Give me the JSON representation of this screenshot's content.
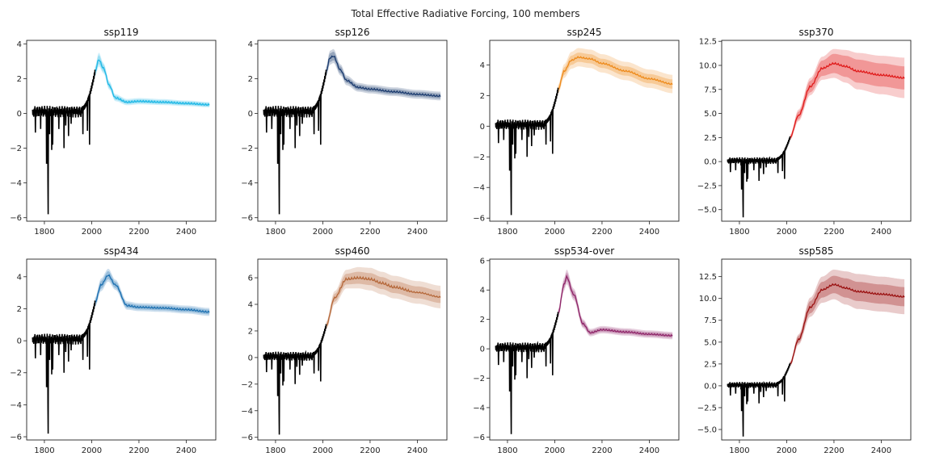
{
  "figure": {
    "suptitle": "Total Effective Radiative Forcing, 100 members"
  },
  "chart_data": [
    {
      "type": "line",
      "title": "ssp119",
      "color": "#1fb8e6",
      "xlim": [
        1725,
        2525
      ],
      "ylim": [
        -6.2,
        4.2
      ],
      "xticks": [
        1800,
        2000,
        2200,
        2400
      ],
      "yticks": [
        -6,
        -4,
        -2,
        0,
        2,
        4
      ],
      "ytick_labels": [
        "−6",
        "−4",
        "−2",
        "0",
        "2",
        "4"
      ],
      "historical": {
        "baseline": 0.1,
        "end_year": 2014,
        "end_value": 2.4
      },
      "projection": {
        "x": [
          2014,
          2030,
          2050,
          2075,
          2100,
          2150,
          2200,
          2300,
          2400,
          2500
        ],
        "median": [
          2.4,
          3.1,
          2.6,
          1.6,
          0.9,
          0.65,
          0.7,
          0.65,
          0.58,
          0.5
        ],
        "band_inner": [
          0.2,
          0.25,
          0.2,
          0.15,
          0.12,
          0.1,
          0.1,
          0.1,
          0.1,
          0.1
        ],
        "band_outer": [
          0.3,
          0.4,
          0.3,
          0.25,
          0.2,
          0.18,
          0.18,
          0.17,
          0.16,
          0.15
        ]
      }
    },
    {
      "type": "line",
      "title": "ssp126",
      "color": "#1a3a6e",
      "xlim": [
        1725,
        2525
      ],
      "ylim": [
        -6.2,
        4.2
      ],
      "xticks": [
        1800,
        2000,
        2200,
        2400
      ],
      "yticks": [
        -6,
        -4,
        -2,
        0,
        2,
        4
      ],
      "ytick_labels": [
        "−6",
        "−4",
        "−2",
        "0",
        "2",
        "4"
      ],
      "historical": {
        "baseline": 0.1,
        "end_year": 2014,
        "end_value": 2.4
      },
      "projection": {
        "x": [
          2014,
          2030,
          2045,
          2075,
          2100,
          2150,
          2200,
          2300,
          2400,
          2500
        ],
        "median": [
          2.4,
          3.2,
          3.3,
          2.5,
          1.9,
          1.5,
          1.4,
          1.25,
          1.1,
          1.0
        ],
        "band_inner": [
          0.2,
          0.25,
          0.25,
          0.2,
          0.15,
          0.15,
          0.15,
          0.15,
          0.15,
          0.15
        ],
        "band_outer": [
          0.3,
          0.4,
          0.4,
          0.32,
          0.28,
          0.25,
          0.25,
          0.25,
          0.25,
          0.25
        ]
      }
    },
    {
      "type": "line",
      "title": "ssp245",
      "color": "#ee8a1a",
      "xlim": [
        1725,
        2525
      ],
      "ylim": [
        -6.2,
        5.6
      ],
      "xticks": [
        1800,
        2000,
        2200,
        2400
      ],
      "yticks": [
        -6,
        -4,
        -2,
        0,
        2,
        4
      ],
      "ytick_labels": [
        "−6",
        "−4",
        "−2",
        "0",
        "2",
        "4"
      ],
      "historical": {
        "baseline": 0.1,
        "end_year": 2014,
        "end_value": 2.4
      },
      "projection": {
        "x": [
          2014,
          2040,
          2070,
          2100,
          2150,
          2200,
          2300,
          2400,
          2500
        ],
        "median": [
          2.4,
          3.6,
          4.3,
          4.5,
          4.4,
          4.1,
          3.6,
          3.1,
          2.75
        ],
        "band_inner": [
          0.2,
          0.25,
          0.3,
          0.3,
          0.3,
          0.3,
          0.3,
          0.3,
          0.3
        ],
        "band_outer": [
          0.3,
          0.45,
          0.55,
          0.6,
          0.6,
          0.6,
          0.6,
          0.6,
          0.6
        ]
      }
    },
    {
      "type": "line",
      "title": "ssp370",
      "color": "#e01a1a",
      "xlim": [
        1725,
        2525
      ],
      "ylim": [
        -6.2,
        12.6
      ],
      "xticks": [
        1800,
        2000,
        2200,
        2400
      ],
      "yticks": [
        -5,
        -2.5,
        0,
        2.5,
        5,
        7.5,
        10,
        12.5
      ],
      "ytick_labels": [
        "−5.0",
        "−2.5",
        "0.0",
        "2.5",
        "5.0",
        "7.5",
        "10.0",
        "12.5"
      ],
      "historical": {
        "baseline": 0.1,
        "end_year": 2014,
        "end_value": 2.5
      },
      "projection": {
        "x": [
          2014,
          2050,
          2100,
          2150,
          2200,
          2250,
          2300,
          2400,
          2500
        ],
        "median": [
          2.5,
          4.8,
          7.8,
          9.7,
          10.2,
          9.9,
          9.4,
          9.0,
          8.7
        ],
        "band_inner": [
          0.2,
          0.4,
          0.6,
          0.8,
          1.0,
          1.1,
          1.2,
          1.2,
          1.2
        ],
        "band_outer": [
          0.3,
          0.6,
          0.9,
          1.2,
          1.5,
          1.7,
          1.9,
          2.0,
          2.1
        ]
      }
    },
    {
      "type": "line",
      "title": "ssp434",
      "color": "#1a6fb0",
      "xlim": [
        1725,
        2525
      ],
      "ylim": [
        -6.2,
        5.1
      ],
      "xticks": [
        1800,
        2000,
        2200,
        2400
      ],
      "yticks": [
        -6,
        -4,
        -2,
        0,
        2,
        4
      ],
      "ytick_labels": [
        "−6",
        "−4",
        "−2",
        "0",
        "2",
        "4"
      ],
      "historical": {
        "baseline": 0.1,
        "end_year": 2014,
        "end_value": 2.4
      },
      "projection": {
        "x": [
          2014,
          2040,
          2070,
          2100,
          2150,
          2200,
          2300,
          2400,
          2500
        ],
        "median": [
          2.4,
          3.5,
          4.1,
          3.5,
          2.2,
          2.1,
          2.05,
          1.95,
          1.8
        ],
        "band_inner": [
          0.2,
          0.25,
          0.25,
          0.2,
          0.15,
          0.15,
          0.15,
          0.15,
          0.15
        ],
        "band_outer": [
          0.3,
          0.4,
          0.4,
          0.32,
          0.26,
          0.25,
          0.25,
          0.25,
          0.25
        ]
      }
    },
    {
      "type": "line",
      "title": "ssp460",
      "color": "#b5683a",
      "xlim": [
        1725,
        2525
      ],
      "ylim": [
        -6.2,
        7.4
      ],
      "xticks": [
        1800,
        2000,
        2200,
        2400
      ],
      "yticks": [
        -6,
        -4,
        -2,
        0,
        2,
        4,
        6
      ],
      "ytick_labels": [
        "−6",
        "−4",
        "−2",
        "0",
        "2",
        "4",
        "6"
      ],
      "historical": {
        "baseline": 0.1,
        "end_year": 2014,
        "end_value": 2.4
      },
      "projection": {
        "x": [
          2014,
          2050,
          2100,
          2150,
          2200,
          2250,
          2300,
          2400,
          2500
        ],
        "median": [
          2.4,
          4.5,
          5.9,
          6.0,
          5.9,
          5.6,
          5.3,
          4.9,
          4.55
        ],
        "band_inner": [
          0.2,
          0.3,
          0.4,
          0.45,
          0.45,
          0.45,
          0.45,
          0.45,
          0.45
        ],
        "band_outer": [
          0.3,
          0.5,
          0.7,
          0.8,
          0.85,
          0.85,
          0.85,
          0.85,
          0.85
        ]
      }
    },
    {
      "type": "line",
      "title": "ssp534-over",
      "color": "#8e2468",
      "xlim": [
        1725,
        2525
      ],
      "ylim": [
        -6.2,
        6.1
      ],
      "xticks": [
        1800,
        2000,
        2200,
        2400
      ],
      "yticks": [
        -6,
        -4,
        -2,
        0,
        2,
        4,
        6
      ],
      "ytick_labels": [
        "−6",
        "−4",
        "−2",
        "0",
        "2",
        "4",
        "6"
      ],
      "historical": {
        "baseline": 0.1,
        "end_year": 2014,
        "end_value": 2.4
      },
      "projection": {
        "x": [
          2014,
          2040,
          2050,
          2080,
          2120,
          2150,
          2200,
          2300,
          2400,
          2500
        ],
        "median": [
          2.4,
          4.4,
          4.9,
          3.7,
          1.7,
          1.1,
          1.3,
          1.15,
          1.0,
          0.9
        ],
        "band_inner": [
          0.2,
          0.25,
          0.3,
          0.25,
          0.2,
          0.15,
          0.15,
          0.15,
          0.15,
          0.15
        ],
        "band_outer": [
          0.3,
          0.45,
          0.5,
          0.4,
          0.3,
          0.25,
          0.25,
          0.25,
          0.25,
          0.25
        ]
      }
    },
    {
      "type": "line",
      "title": "ssp585",
      "color": "#9a1010",
      "xlim": [
        1725,
        2525
      ],
      "ylim": [
        -6.2,
        14.5
      ],
      "xticks": [
        1800,
        2000,
        2200,
        2400
      ],
      "yticks": [
        -5,
        -2.5,
        0,
        2.5,
        5,
        7.5,
        10,
        12.5
      ],
      "ytick_labels": [
        "−5.0",
        "−2.5",
        "0.0",
        "2.5",
        "5.0",
        "7.5",
        "10.0",
        "12.5"
      ],
      "historical": {
        "baseline": 0.1,
        "end_year": 2014,
        "end_value": 2.5
      },
      "projection": {
        "x": [
          2014,
          2050,
          2100,
          2150,
          2200,
          2250,
          2300,
          2400,
          2500
        ],
        "median": [
          2.5,
          5.3,
          9.0,
          11.0,
          11.6,
          11.2,
          10.8,
          10.5,
          10.2
        ],
        "band_inner": [
          0.2,
          0.4,
          0.7,
          0.9,
          1.0,
          1.1,
          1.1,
          1.1,
          1.1
        ],
        "band_outer": [
          0.3,
          0.6,
          1.1,
          1.5,
          1.7,
          1.9,
          2.0,
          2.0,
          2.0
        ]
      }
    }
  ]
}
